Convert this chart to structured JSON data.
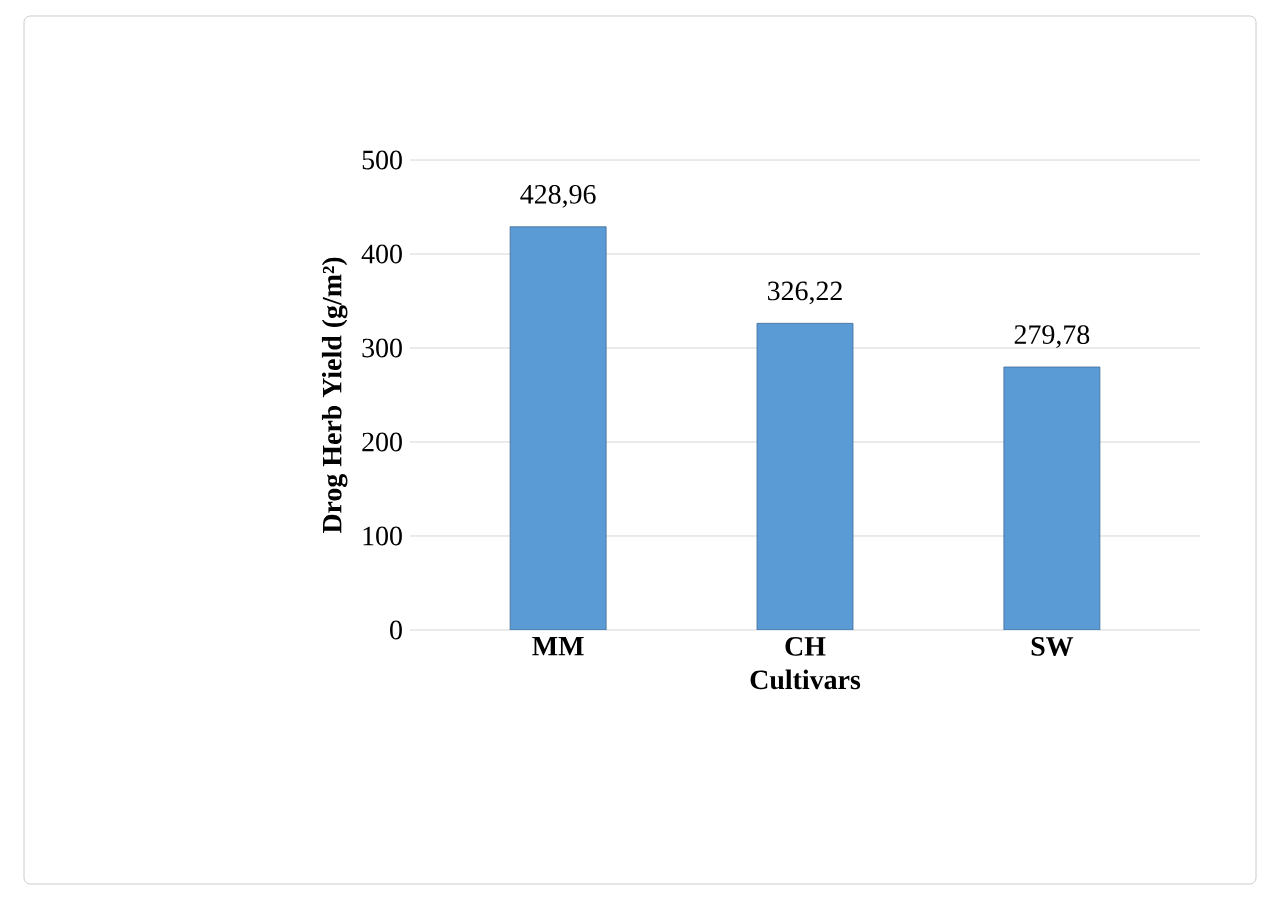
{
  "chart_data": {
    "type": "bar",
    "xlabel": "Cultivars",
    "ylabel": "Drog Herb Yield (g/m²)",
    "categories": [
      "MM",
      "CH",
      "SW"
    ],
    "values": [
      428.96,
      326.22,
      279.78
    ],
    "value_labels": [
      "428,96",
      "326,22",
      "279,78"
    ],
    "color": "#5b9bd5",
    "ylim": [
      0,
      500
    ],
    "yticks": [
      0,
      100,
      200,
      300,
      400,
      500
    ],
    "grid": "y"
  }
}
